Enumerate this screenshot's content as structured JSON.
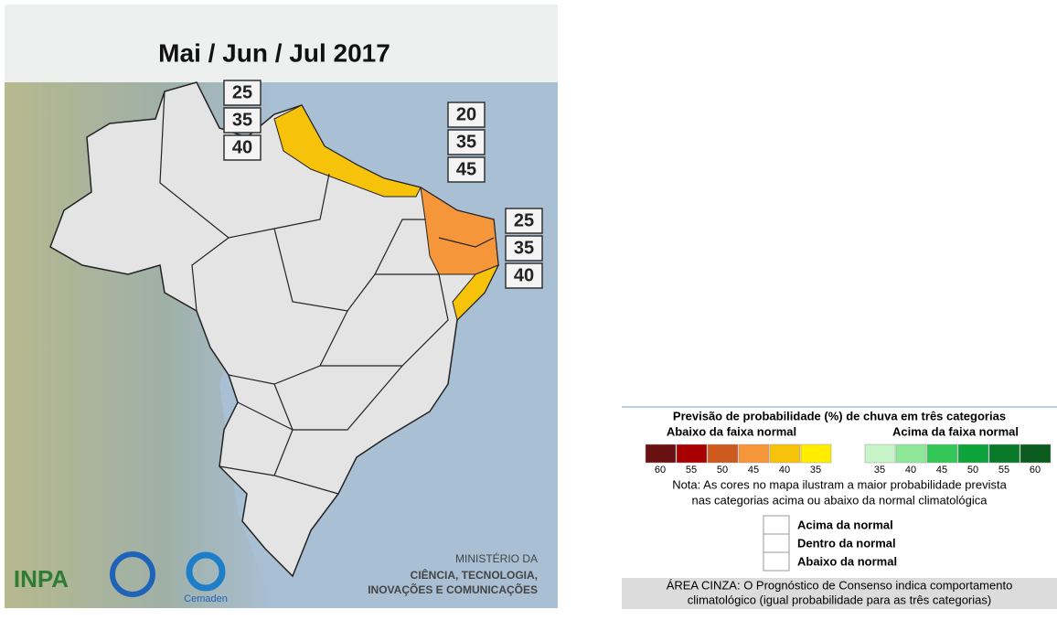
{
  "map": {
    "title": "Mai / Jun / Jul 2017",
    "probability_boxes": [
      {
        "values": [
          25,
          35,
          40
        ]
      },
      {
        "values": [
          20,
          35,
          45
        ]
      },
      {
        "values": [
          25,
          35,
          40
        ]
      }
    ],
    "logos": {
      "inpa": "INPA",
      "cemaden": "Cemaden",
      "ministry": [
        "MINISTÉRIO DA",
        "CIÊNCIA, TECNOLOGIA,",
        "INOVAÇÕES E COMUNICAÇÕES"
      ]
    }
  },
  "legend": {
    "title": "Previsão de probabilidade (%) de chuva em três categorias",
    "below": {
      "label": "Abaixo da faixa normal",
      "values": [
        60,
        55,
        50,
        45,
        40,
        35
      ],
      "colors": [
        "#6b1010",
        "#a80000",
        "#cc5a1e",
        "#f6963a",
        "#f7c30a",
        "#ffee00"
      ]
    },
    "above": {
      "label": "Acima da faixa normal",
      "values": [
        35,
        40,
        45,
        50,
        55,
        60
      ],
      "colors": [
        "#c8f5c8",
        "#8fe89a",
        "#33c75a",
        "#0ea33a",
        "#087a2a",
        "#0b5a1e"
      ]
    },
    "note": [
      "Nota: As cores no mapa ilustram a maior probabilidade prevista",
      "nas categorias acima ou abaixo da normal climatológica"
    ],
    "categories": [
      "Acima da normal",
      "Dentro da normal",
      "Abaixo da normal"
    ],
    "gray_area": [
      "ÁREA CINZA: O Prognóstico de Consenso indica comportamento",
      "climatológico (igual probabilidade para as três categorias)"
    ]
  }
}
